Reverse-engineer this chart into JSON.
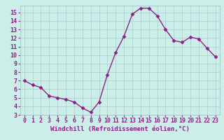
{
  "x": [
    0,
    1,
    2,
    3,
    4,
    5,
    6,
    7,
    8,
    9,
    10,
    11,
    12,
    13,
    14,
    15,
    16,
    17,
    18,
    19,
    20,
    21,
    22,
    23
  ],
  "y": [
    7.0,
    6.5,
    6.2,
    5.2,
    5.0,
    4.8,
    4.5,
    3.8,
    3.3,
    4.5,
    7.7,
    10.3,
    12.2,
    14.8,
    15.5,
    15.5,
    14.6,
    13.0,
    11.7,
    11.5,
    12.1,
    11.9,
    10.8,
    9.8
  ],
  "line_color": "#882288",
  "marker": "D",
  "marker_size": 2.5,
  "bg_color": "#cceee8",
  "grid_color": "#aacccc",
  "xlabel": "Windchill (Refroidissement éolien,°C)",
  "xlabel_color": "#882288",
  "tick_color": "#882288",
  "xlim": [
    -0.5,
    23.5
  ],
  "ylim": [
    3,
    15.8
  ],
  "yticks": [
    3,
    4,
    5,
    6,
    7,
    8,
    9,
    10,
    11,
    12,
    13,
    14,
    15
  ],
  "xticks": [
    0,
    1,
    2,
    3,
    4,
    5,
    6,
    7,
    8,
    9,
    10,
    11,
    12,
    13,
    14,
    15,
    16,
    17,
    18,
    19,
    20,
    21,
    22,
    23
  ],
  "font_size": 6.0,
  "xlabel_fontsize": 6.5
}
